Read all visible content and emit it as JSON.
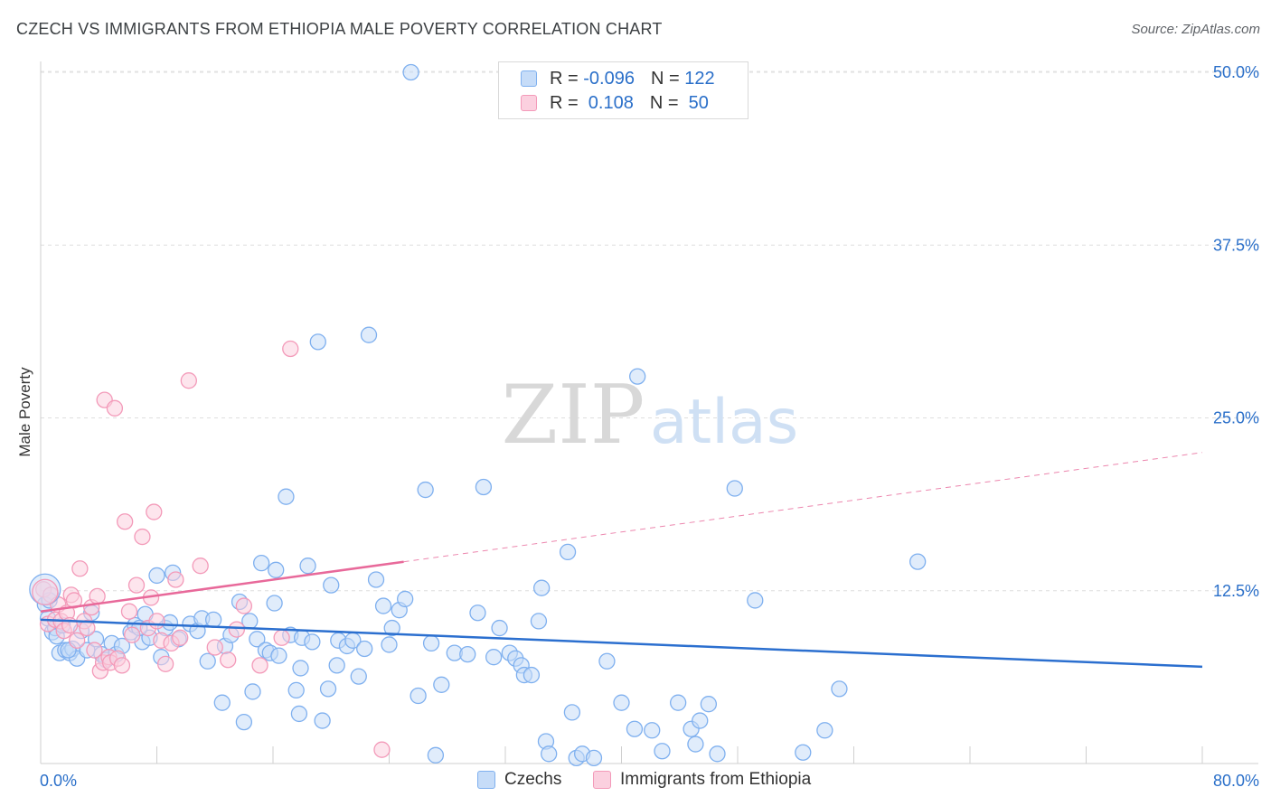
{
  "title": "CZECH VS IMMIGRANTS FROM ETHIOPIA MALE POVERTY CORRELATION CHART",
  "source": "Source: ZipAtlas.com",
  "watermark": {
    "zip": "ZIP",
    "atlas": "atlas"
  },
  "legend": {
    "rows": [
      {
        "r_label": "R = ",
        "r_value": "-0.096",
        "n_label": "N = ",
        "n_value": "122",
        "color": "#7fb0ef",
        "fill": "#c6dcf8"
      },
      {
        "r_label": "R = ",
        "r_value": " 0.108",
        "n_label": "N = ",
        "n_value": " 50",
        "color": "#f39ab9",
        "fill": "#fbd0df"
      }
    ]
  },
  "bottom_legend": [
    {
      "label": "Czechs",
      "color": "#7fb0ef",
      "fill": "#c6dcf8"
    },
    {
      "label": "Immigrants from Ethiopia",
      "color": "#f39ab9",
      "fill": "#fbd0df"
    }
  ],
  "chart_data": {
    "type": "scatter",
    "title": "CZECH VS IMMIGRANTS FROM ETHIOPIA MALE POVERTY CORRELATION CHART",
    "xlabel": "",
    "ylabel": "Male Poverty",
    "xlim": [
      0,
      80
    ],
    "ylim": [
      0,
      50
    ],
    "x_tick_labels": [
      "0.0%",
      "80.0%"
    ],
    "y_ticks": [
      12.5,
      25.0,
      37.5,
      50.0
    ],
    "y_tick_labels": [
      "12.5%",
      "25.0%",
      "37.5%",
      "50.0%"
    ],
    "grid": true,
    "legend_position": "top-center",
    "series": [
      {
        "name": "Czechs",
        "color": "#7fb0ef",
        "fill": "#c6dcf8",
        "trend_color": "#2b6fcf",
        "trend": {
          "x": [
            0,
            80
          ],
          "y": [
            10.4,
            7.0
          ],
          "dashed_from": null
        },
        "points": [
          [
            0.3,
            11.5
          ],
          [
            0.5,
            10.5
          ],
          [
            0.6,
            11.8
          ],
          [
            0.8,
            9.5
          ],
          [
            1.0,
            9.8
          ],
          [
            1.1,
            9.2
          ],
          [
            1.3,
            8.0
          ],
          [
            1.5,
            10.0
          ],
          [
            1.7,
            8.2
          ],
          [
            2.0,
            8.0
          ],
          [
            2.2,
            8.3
          ],
          [
            2.5,
            7.6
          ],
          [
            2.8,
            9.6
          ],
          [
            3.2,
            8.2
          ],
          [
            3.5,
            10.9
          ],
          [
            3.8,
            9.0
          ],
          [
            4.2,
            7.9
          ],
          [
            4.5,
            7.5
          ],
          [
            4.9,
            8.7
          ],
          [
            5.2,
            7.9
          ],
          [
            5.6,
            8.5
          ],
          [
            6.2,
            9.5
          ],
          [
            6.5,
            10.0
          ],
          [
            7.0,
            8.8
          ],
          [
            7.2,
            10.8
          ],
          [
            7.5,
            9.1
          ],
          [
            8.0,
            13.6
          ],
          [
            8.3,
            7.7
          ],
          [
            8.6,
            9.8
          ],
          [
            8.9,
            10.2
          ],
          [
            9.1,
            13.8
          ],
          [
            9.5,
            9.0
          ],
          [
            10.3,
            10.1
          ],
          [
            10.8,
            9.6
          ],
          [
            11.1,
            10.5
          ],
          [
            11.5,
            7.4
          ],
          [
            11.9,
            10.4
          ],
          [
            12.5,
            4.4
          ],
          [
            12.7,
            8.5
          ],
          [
            13.1,
            9.3
          ],
          [
            13.7,
            11.7
          ],
          [
            14.0,
            3.0
          ],
          [
            14.4,
            10.3
          ],
          [
            14.6,
            5.2
          ],
          [
            14.9,
            9.0
          ],
          [
            15.2,
            14.5
          ],
          [
            15.5,
            8.2
          ],
          [
            15.8,
            8.0
          ],
          [
            16.1,
            11.6
          ],
          [
            16.4,
            7.8
          ],
          [
            16.2,
            14.0
          ],
          [
            16.9,
            19.3
          ],
          [
            17.2,
            9.3
          ],
          [
            17.6,
            5.3
          ],
          [
            17.8,
            3.6
          ],
          [
            17.9,
            6.9
          ],
          [
            18.0,
            9.1
          ],
          [
            18.4,
            14.3
          ],
          [
            18.7,
            8.8
          ],
          [
            19.1,
            30.5
          ],
          [
            19.4,
            3.1
          ],
          [
            19.8,
            5.4
          ],
          [
            20.0,
            12.9
          ],
          [
            20.4,
            7.1
          ],
          [
            20.5,
            8.9
          ],
          [
            21.1,
            8.5
          ],
          [
            21.5,
            8.9
          ],
          [
            21.9,
            6.3
          ],
          [
            22.3,
            8.3
          ],
          [
            22.6,
            31.0
          ],
          [
            23.1,
            13.3
          ],
          [
            23.6,
            11.4
          ],
          [
            24.0,
            8.6
          ],
          [
            24.2,
            9.8
          ],
          [
            24.7,
            11.1
          ],
          [
            25.1,
            11.9
          ],
          [
            25.5,
            50.0
          ],
          [
            26.0,
            4.9
          ],
          [
            26.5,
            19.8
          ],
          [
            26.9,
            8.7
          ],
          [
            27.2,
            0.6
          ],
          [
            27.6,
            5.7
          ],
          [
            28.5,
            8.0
          ],
          [
            29.4,
            7.9
          ],
          [
            30.1,
            10.9
          ],
          [
            30.5,
            20.0
          ],
          [
            31.2,
            7.7
          ],
          [
            31.6,
            9.8
          ],
          [
            32.3,
            8.0
          ],
          [
            32.7,
            7.6
          ],
          [
            33.1,
            7.1
          ],
          [
            33.3,
            6.4
          ],
          [
            33.8,
            6.4
          ],
          [
            34.5,
            12.7
          ],
          [
            34.3,
            10.3
          ],
          [
            34.8,
            1.6
          ],
          [
            35.0,
            0.7
          ],
          [
            36.3,
            15.3
          ],
          [
            36.6,
            3.7
          ],
          [
            36.9,
            0.4
          ],
          [
            37.3,
            0.7
          ],
          [
            38.1,
            0.4
          ],
          [
            39.0,
            7.4
          ],
          [
            40.0,
            4.4
          ],
          [
            40.9,
            2.5
          ],
          [
            41.1,
            28.0
          ],
          [
            42.1,
            2.4
          ],
          [
            42.8,
            0.9
          ],
          [
            43.9,
            4.4
          ],
          [
            44.8,
            2.5
          ],
          [
            45.1,
            1.4
          ],
          [
            45.4,
            3.1
          ],
          [
            46.0,
            4.3
          ],
          [
            46.6,
            0.7
          ],
          [
            47.8,
            19.9
          ],
          [
            49.2,
            11.8
          ],
          [
            52.5,
            0.8
          ],
          [
            54.0,
            2.4
          ],
          [
            55.0,
            5.4
          ],
          [
            60.4,
            14.6
          ],
          [
            1.9,
            8.2
          ],
          [
            6.8,
            9.8
          ]
        ]
      },
      {
        "name": "Immigrants from Ethiopia",
        "color": "#f39ab9",
        "fill": "#fbd0df",
        "trend_color": "#e8699a",
        "trend": {
          "x": [
            0,
            80
          ],
          "y": [
            11.0,
            22.5
          ],
          "dashed_from": 25
        },
        "points": [
          [
            0.2,
            12.6
          ],
          [
            0.5,
            10.1
          ],
          [
            0.7,
            12.2
          ],
          [
            1.0,
            10.4
          ],
          [
            1.2,
            11.5
          ],
          [
            1.4,
            10.3
          ],
          [
            1.6,
            9.6
          ],
          [
            1.8,
            10.9
          ],
          [
            2.0,
            10.0
          ],
          [
            2.1,
            12.2
          ],
          [
            2.3,
            11.8
          ],
          [
            2.5,
            8.9
          ],
          [
            2.7,
            14.1
          ],
          [
            3.0,
            10.3
          ],
          [
            3.2,
            9.8
          ],
          [
            3.5,
            11.3
          ],
          [
            3.7,
            8.2
          ],
          [
            3.9,
            12.1
          ],
          [
            4.1,
            6.7
          ],
          [
            4.3,
            7.3
          ],
          [
            4.4,
            26.3
          ],
          [
            4.7,
            7.7
          ],
          [
            4.8,
            7.3
          ],
          [
            5.1,
            25.7
          ],
          [
            5.3,
            7.6
          ],
          [
            5.6,
            7.1
          ],
          [
            5.8,
            17.5
          ],
          [
            6.1,
            11.0
          ],
          [
            6.3,
            9.3
          ],
          [
            6.6,
            12.9
          ],
          [
            7.0,
            16.4
          ],
          [
            7.4,
            9.8
          ],
          [
            7.6,
            12.0
          ],
          [
            7.8,
            18.2
          ],
          [
            8.0,
            10.3
          ],
          [
            8.3,
            8.9
          ],
          [
            8.6,
            7.2
          ],
          [
            9.0,
            8.7
          ],
          [
            9.3,
            13.3
          ],
          [
            9.6,
            9.1
          ],
          [
            10.2,
            27.7
          ],
          [
            11.0,
            14.3
          ],
          [
            12.0,
            8.4
          ],
          [
            12.9,
            7.5
          ],
          [
            13.5,
            9.7
          ],
          [
            14.0,
            11.4
          ],
          [
            15.1,
            7.1
          ],
          [
            16.6,
            9.1
          ],
          [
            17.2,
            30.0
          ],
          [
            23.5,
            1.0
          ]
        ]
      }
    ]
  }
}
